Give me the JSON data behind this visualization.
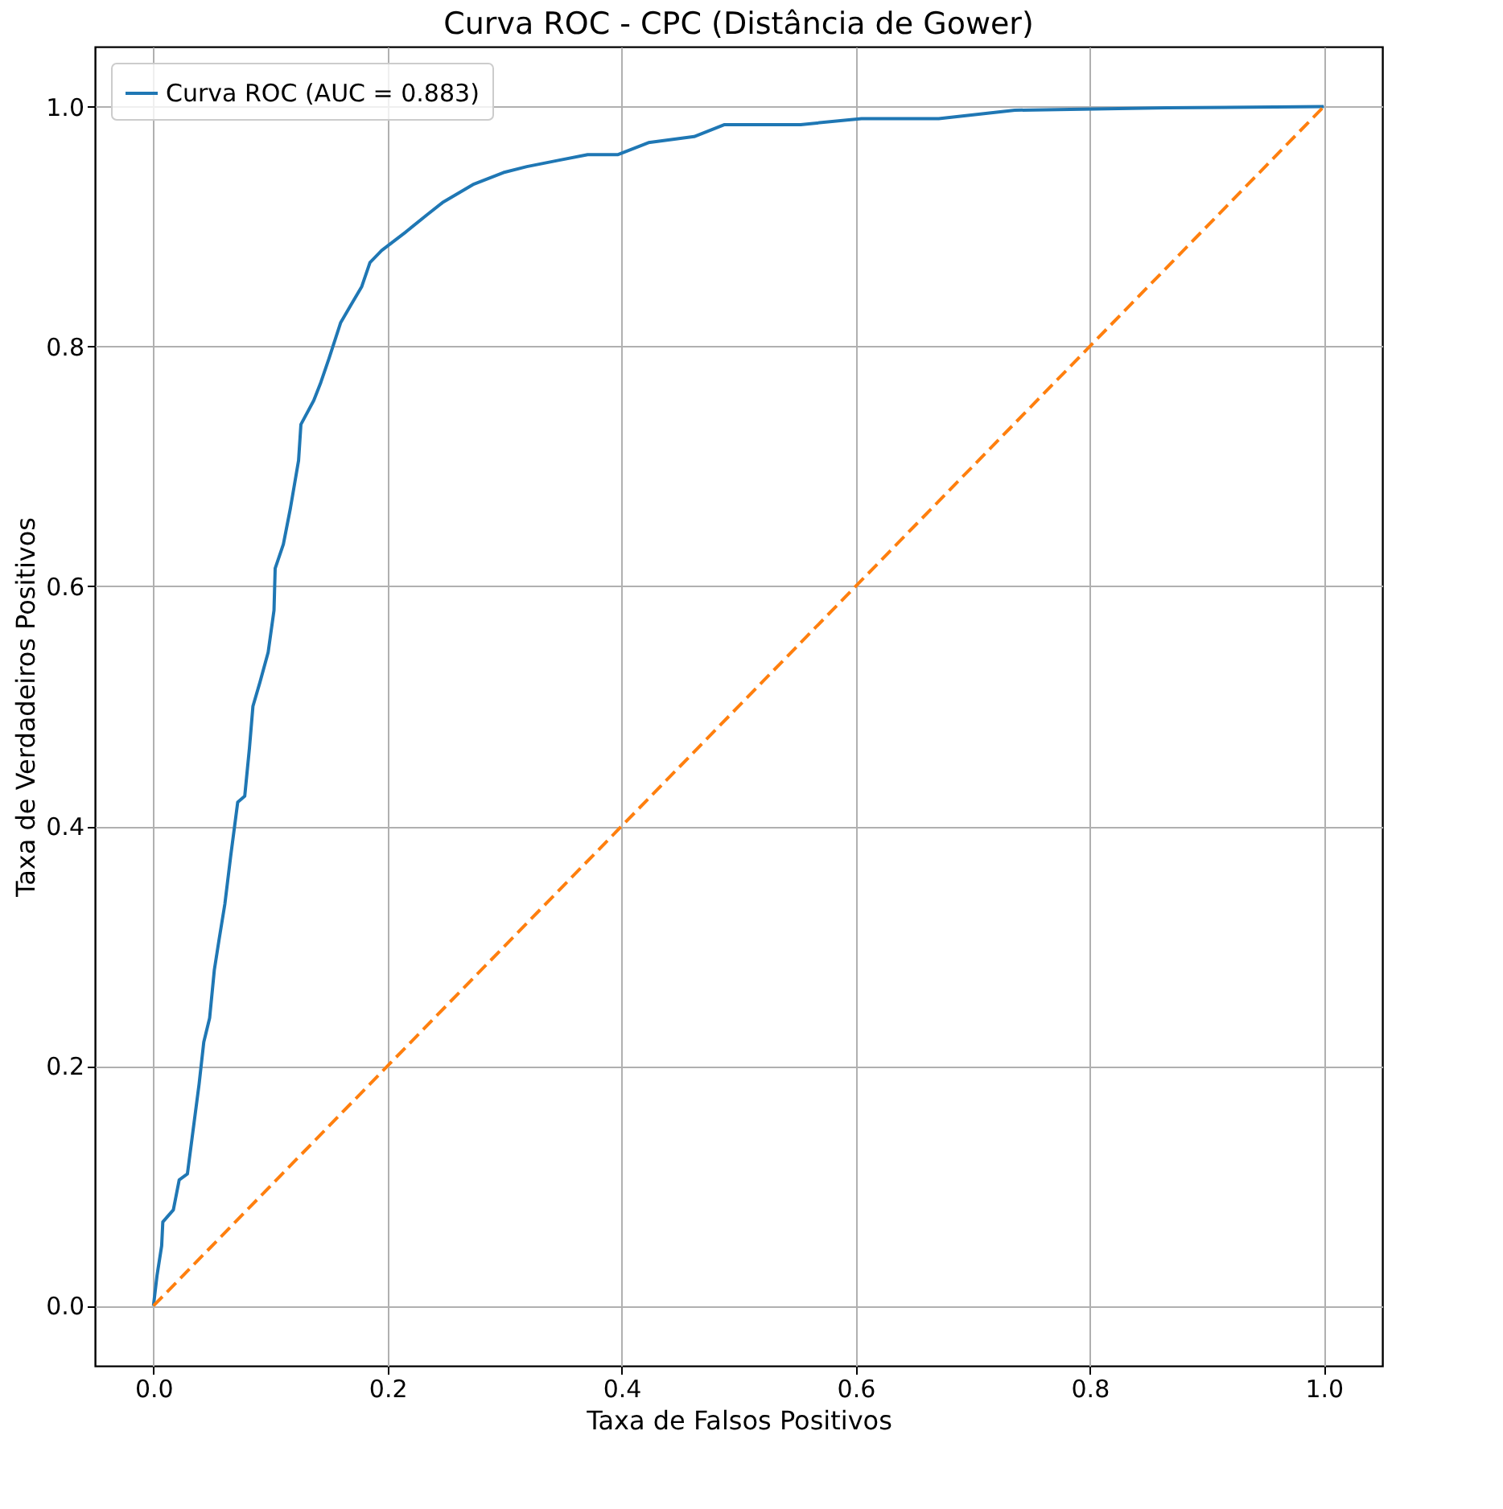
{
  "chart_data": {
    "type": "line",
    "title": "Curva ROC - CPC (Distância de Gower)",
    "xlabel": "Taxa de Falsos Positivos",
    "ylabel": "Taxa de Verdadeiros Positivos",
    "xlim": [
      -0.05,
      1.05
    ],
    "ylim": [
      -0.05,
      1.05
    ],
    "xticks": [
      {
        "value": 0,
        "label": "0.0"
      },
      {
        "value": 0.2,
        "label": "0.2"
      },
      {
        "value": 0.4,
        "label": "0.4"
      },
      {
        "value": 0.6,
        "label": "0.6"
      },
      {
        "value": 0.8,
        "label": "0.8"
      },
      {
        "value": 1,
        "label": "1.0"
      }
    ],
    "yticks": [
      {
        "value": 0,
        "label": "0.0"
      },
      {
        "value": 0.2,
        "label": "0.2"
      },
      {
        "value": 0.4,
        "label": "0.4"
      },
      {
        "value": 0.6,
        "label": "0.6"
      },
      {
        "value": 0.8,
        "label": "0.8"
      },
      {
        "value": 1,
        "label": "1.0"
      }
    ],
    "grid": true,
    "legend": "top left",
    "series": [
      {
        "name": "Curva ROC (AUC = 0.883)",
        "color": "#1f77b4",
        "line_style": "solid",
        "x": [
          0,
          0.003,
          0.007,
          0.008,
          0.017,
          0.022,
          0.029,
          0.033,
          0.039,
          0.043,
          0.048,
          0.052,
          0.056,
          0.061,
          0.066,
          0.072,
          0.078,
          0.082,
          0.085,
          0.091,
          0.098,
          0.103,
          0.104,
          0.111,
          0.117,
          0.124,
          0.126,
          0.137,
          0.143,
          0.15,
          0.16,
          0.169,
          0.178,
          0.185,
          0.195,
          0.215,
          0.234,
          0.247,
          0.273,
          0.299,
          0.319,
          0.345,
          0.371,
          0.397,
          0.423,
          0.462,
          0.488,
          0.553,
          0.605,
          0.671,
          0.736,
          0.866,
          1
        ],
        "values": [
          0,
          0.025,
          0.05,
          0.07,
          0.08,
          0.105,
          0.11,
          0.14,
          0.185,
          0.22,
          0.24,
          0.28,
          0.305,
          0.335,
          0.375,
          0.42,
          0.425,
          0.465,
          0.5,
          0.52,
          0.545,
          0.58,
          0.615,
          0.635,
          0.665,
          0.705,
          0.735,
          0.755,
          0.77,
          0.79,
          0.82,
          0.835,
          0.85,
          0.87,
          0.88,
          0.895,
          0.91,
          0.92,
          0.935,
          0.945,
          0.95,
          0.955,
          0.96,
          0.96,
          0.97,
          0.975,
          0.985,
          0.985,
          0.99,
          0.99,
          0.997,
          0.999,
          1
        ]
      },
      {
        "color": "#ff7f0e",
        "line_style": "dashed",
        "x": [
          0,
          1
        ],
        "values": [
          0,
          1
        ]
      }
    ]
  }
}
